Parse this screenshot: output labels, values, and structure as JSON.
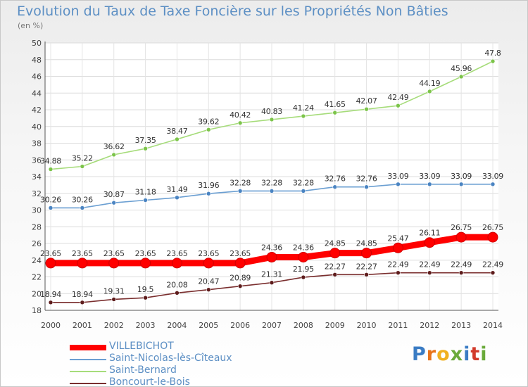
{
  "title": "Evolution du Taux de Taxe Foncière sur les Propriétés Non Bâties",
  "unit": "(en %)",
  "logo": {
    "text": "Proxiti",
    "letter_colors": [
      "#3a7cc4",
      "#e8731a",
      "#f0b020",
      "#6aaa3a",
      "#3a7cc4",
      "#d23a2a",
      "#6aaa3a"
    ]
  },
  "chart_data": {
    "type": "line",
    "x": [
      "2000",
      "2001",
      "2002",
      "2003",
      "2004",
      "2005",
      "2006",
      "2007",
      "2008",
      "2009",
      "2010",
      "2011",
      "2012",
      "2013",
      "2014"
    ],
    "ylim": [
      18,
      50
    ],
    "yticks": [
      18,
      20,
      22,
      24,
      26,
      28,
      30,
      32,
      34,
      36,
      38,
      40,
      42,
      44,
      46,
      48,
      50
    ],
    "grid": true,
    "legend_placement": "bottom-left",
    "series": [
      {
        "name": "VILLEBICHOT",
        "color": "#ff0000",
        "marker_color": "#ff0000",
        "emphasis": true,
        "values": [
          23.65,
          23.65,
          23.65,
          23.65,
          23.65,
          23.65,
          23.65,
          24.36,
          24.36,
          24.85,
          24.85,
          25.47,
          26.11,
          26.75,
          26.75
        ],
        "labels": [
          "23.65",
          "23.65",
          "23.65",
          "23.65",
          "23.65",
          "23.65",
          "23.65",
          "24.36",
          "24.36",
          "24.85",
          "24.85",
          "25.47",
          "26.11",
          "26.75",
          "26.75"
        ]
      },
      {
        "name": "Saint-Nicolas-lès-Cîteaux",
        "color": "#6b9fd2",
        "marker_color": "#4a84c2",
        "values": [
          30.26,
          30.26,
          30.87,
          31.18,
          31.49,
          31.96,
          32.28,
          32.28,
          32.28,
          32.76,
          32.76,
          33.09,
          33.09,
          33.09,
          33.09
        ],
        "labels": [
          "30.26",
          "30.26",
          "30.87",
          "31.18",
          "31.49",
          "31.96",
          "32.28",
          "32.28",
          "32.28",
          "32.76",
          "32.76",
          "33.09",
          "33.09",
          "33.09",
          "33.09"
        ]
      },
      {
        "name": "Saint-Bernard",
        "color": "#a6dc7a",
        "marker_color": "#7cc44a",
        "values": [
          34.88,
          35.22,
          36.62,
          37.35,
          38.47,
          39.62,
          40.42,
          40.83,
          41.24,
          41.65,
          42.07,
          42.49,
          44.19,
          45.96,
          47.8
        ],
        "labels": [
          "34.88",
          "35.22",
          "36.62",
          "37.35",
          "38.47",
          "39.62",
          "40.42",
          "40.83",
          "41.24",
          "41.65",
          "42.07",
          "42.49",
          "44.19",
          "45.96",
          "47.8"
        ]
      },
      {
        "name": "Boncourt-le-Bois",
        "color": "#7a2e2e",
        "marker_color": "#5e1c1c",
        "values": [
          18.94,
          18.94,
          19.31,
          19.5,
          20.08,
          20.47,
          20.89,
          21.31,
          21.95,
          22.27,
          22.27,
          22.49,
          22.49,
          22.49,
          22.49
        ],
        "labels": [
          "18.94",
          "18.94",
          "19.31",
          "19.5",
          "20.08",
          "20.47",
          "20.89",
          "21.31",
          "21.95",
          "22.27",
          "22.27",
          "22.49",
          "22.49",
          "22.49",
          "22.49"
        ]
      }
    ]
  }
}
